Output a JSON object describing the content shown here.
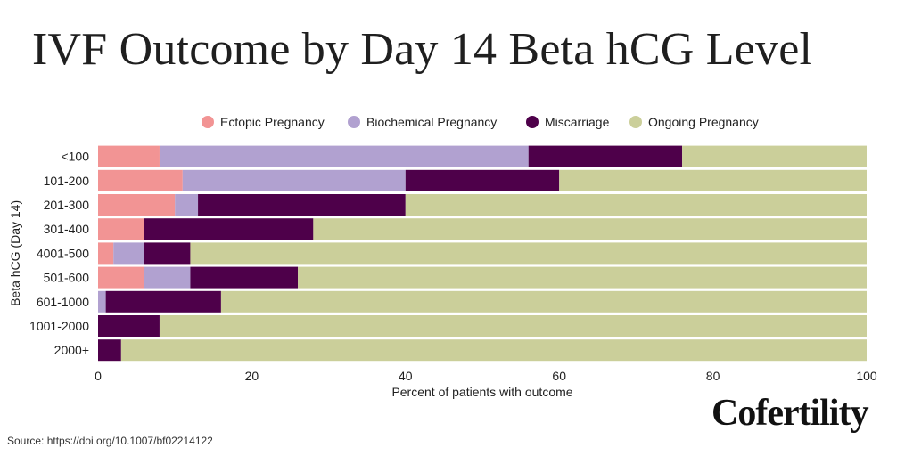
{
  "title": "IVF Outcome by Day 14 Beta hCG Level",
  "logo_text": "Cofertility",
  "source": "Source: https://doi.org/10.1007/bf02214122",
  "chart_data": {
    "type": "bar",
    "orientation": "horizontal",
    "stacked": true,
    "title": "IVF Outcome by Day 14 Beta hCG Level",
    "xlabel": "Percent of patients with outcome",
    "ylabel": "Beta hCG (Day 14)",
    "xlim": [
      0,
      100
    ],
    "xticks": [
      0,
      20,
      40,
      60,
      80,
      100
    ],
    "legend_position": "top",
    "categories": [
      "<100",
      "101-200",
      "201-300",
      "301-400",
      "4001-500",
      "501-600",
      "601-1000",
      "1001-2000",
      "2000+"
    ],
    "series": [
      {
        "name": "Ectopic Pregnancy",
        "color": "#F29494",
        "values": [
          8,
          11,
          10,
          6,
          2,
          6,
          0,
          0,
          0
        ]
      },
      {
        "name": "Biochemical Pregnancy",
        "color": "#B1A1D0",
        "values": [
          48,
          29,
          3,
          0,
          4,
          6,
          1,
          0,
          0
        ]
      },
      {
        "name": "Miscarriage",
        "color": "#4E004A",
        "values": [
          20,
          20,
          27,
          22,
          6,
          14,
          15,
          8,
          3
        ]
      },
      {
        "name": "Ongoing Pregnancy",
        "color": "#CBCF9A",
        "values": [
          24,
          40,
          60,
          72,
          88,
          74,
          84,
          92,
          97
        ]
      }
    ]
  }
}
